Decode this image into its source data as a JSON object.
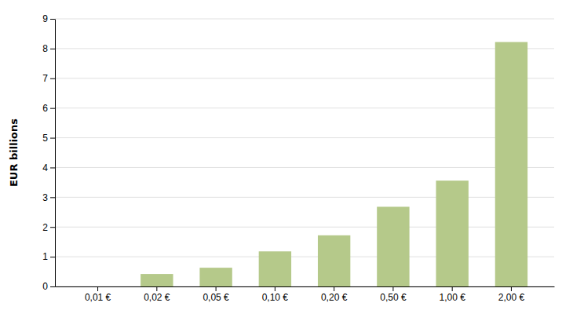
{
  "chart_data": {
    "type": "bar",
    "categories": [
      "0,01 €",
      "0,02 €",
      "0,05 €",
      "0,10 €",
      "0,20 €",
      "0,50 €",
      "1,00 €",
      "2,00 €"
    ],
    "values": [
      0.0,
      0.42,
      0.63,
      1.18,
      1.72,
      2.68,
      3.56,
      8.22
    ],
    "color": "#b5c98a",
    "ylabel": "EUR billions",
    "ylim": [
      0,
      9
    ],
    "yticks": [
      0,
      1,
      2,
      3,
      4,
      5,
      6,
      7,
      8,
      9
    ],
    "grid": true
  }
}
